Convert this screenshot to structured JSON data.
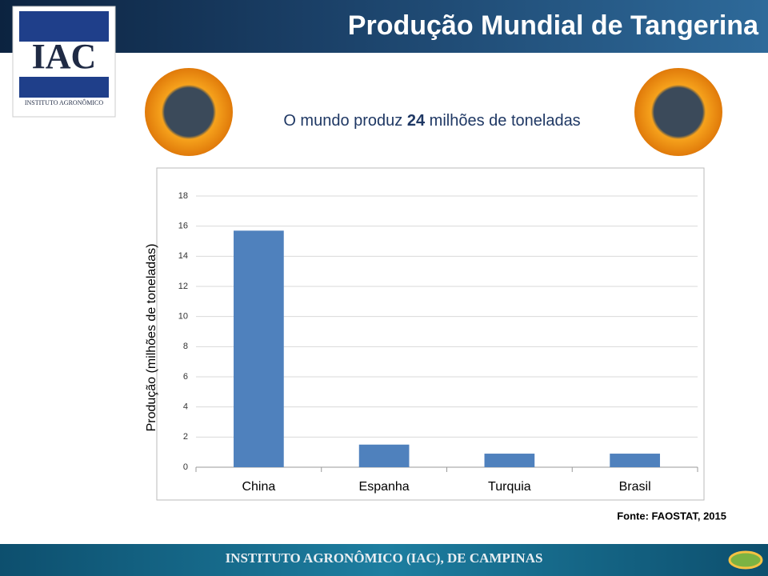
{
  "header": {
    "title": "Produção Mundial de Tangerina"
  },
  "logo": {
    "name": "IAC",
    "subtitle": "INSTITUTO AGRONÔMICO"
  },
  "subtitle": {
    "before": "O mundo produz",
    "number": "24",
    "after": "milhões de toneladas"
  },
  "chart_data": {
    "type": "bar",
    "y_label": "Produção (milhões de toneladas)",
    "categories": [
      "China",
      "Espanha",
      "Turquia",
      "Brasil"
    ],
    "values": [
      15.7,
      1.5,
      0.9,
      0.9
    ],
    "color": "#4f81bd",
    "ylim": [
      0,
      18
    ],
    "yticks": [
      0,
      2,
      4,
      6,
      8,
      10,
      12,
      14,
      16,
      18
    ],
    "grid": true
  },
  "source": "Fonte: FAOSTAT, 2015",
  "footer": "INSTITUTO AGRONÔMICO (IAC), DE CAMPINAS"
}
